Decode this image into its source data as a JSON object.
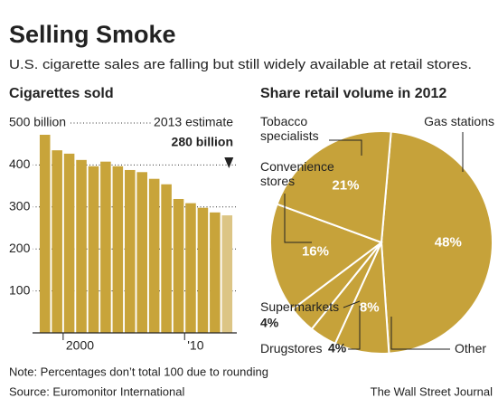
{
  "title": "Selling Smoke",
  "subtitle": "U.S. cigarette sales are falling but still widely available at retail stores.",
  "note": "Note: Percentages don’t total 100 due to rounding",
  "source": "Source: Euromonitor International",
  "credit": "The Wall Street Journal",
  "chart_data": [
    {
      "type": "bar",
      "title": "Cigarettes sold",
      "x": [
        1998,
        1999,
        2000,
        2001,
        2002,
        2003,
        2004,
        2005,
        2006,
        2007,
        2008,
        2009,
        2010,
        2011,
        2012,
        2013
      ],
      "values": [
        472,
        435,
        427,
        412,
        397,
        408,
        397,
        388,
        383,
        367,
        354,
        319,
        309,
        298,
        287,
        280
      ],
      "value_labels": [
        null,
        null,
        null,
        null,
        null,
        null,
        null,
        null,
        null,
        null,
        null,
        null,
        null,
        null,
        null,
        "280 billion"
      ],
      "annotation": "2013 estimate",
      "colors": [
        "#c8a43a",
        "#c8a43a",
        "#c8a43a",
        "#c8a43a",
        "#c8a43a",
        "#c8a43a",
        "#c8a43a",
        "#c8a43a",
        "#c8a43a",
        "#c8a43a",
        "#c8a43a",
        "#c8a43a",
        "#c8a43a",
        "#c8a43a",
        "#c8a43a",
        "#dcc585"
      ],
      "xlim": [
        1997.5,
        2013.5
      ],
      "xticks": [
        2000,
        {
          "value": 2010,
          "label": "'10"
        }
      ],
      "ylim": [
        0,
        500
      ],
      "yticks": [
        100,
        200,
        300,
        400,
        {
          "value": 500,
          "label": "500 billion"
        }
      ],
      "grid": true
    },
    {
      "type": "pie",
      "title": "Share retail volume in 2012",
      "categories": [
        "Gas stations",
        "Other",
        "Drugstores",
        "Supermarkets",
        "Convenience stores",
        "Tobacco specialists"
      ],
      "values": [
        48,
        8,
        4,
        4,
        16,
        21
      ],
      "value_labels": [
        "48%",
        "8%",
        "4%",
        "4%",
        "16%",
        "21%"
      ],
      "color": "#c6a23a"
    }
  ]
}
